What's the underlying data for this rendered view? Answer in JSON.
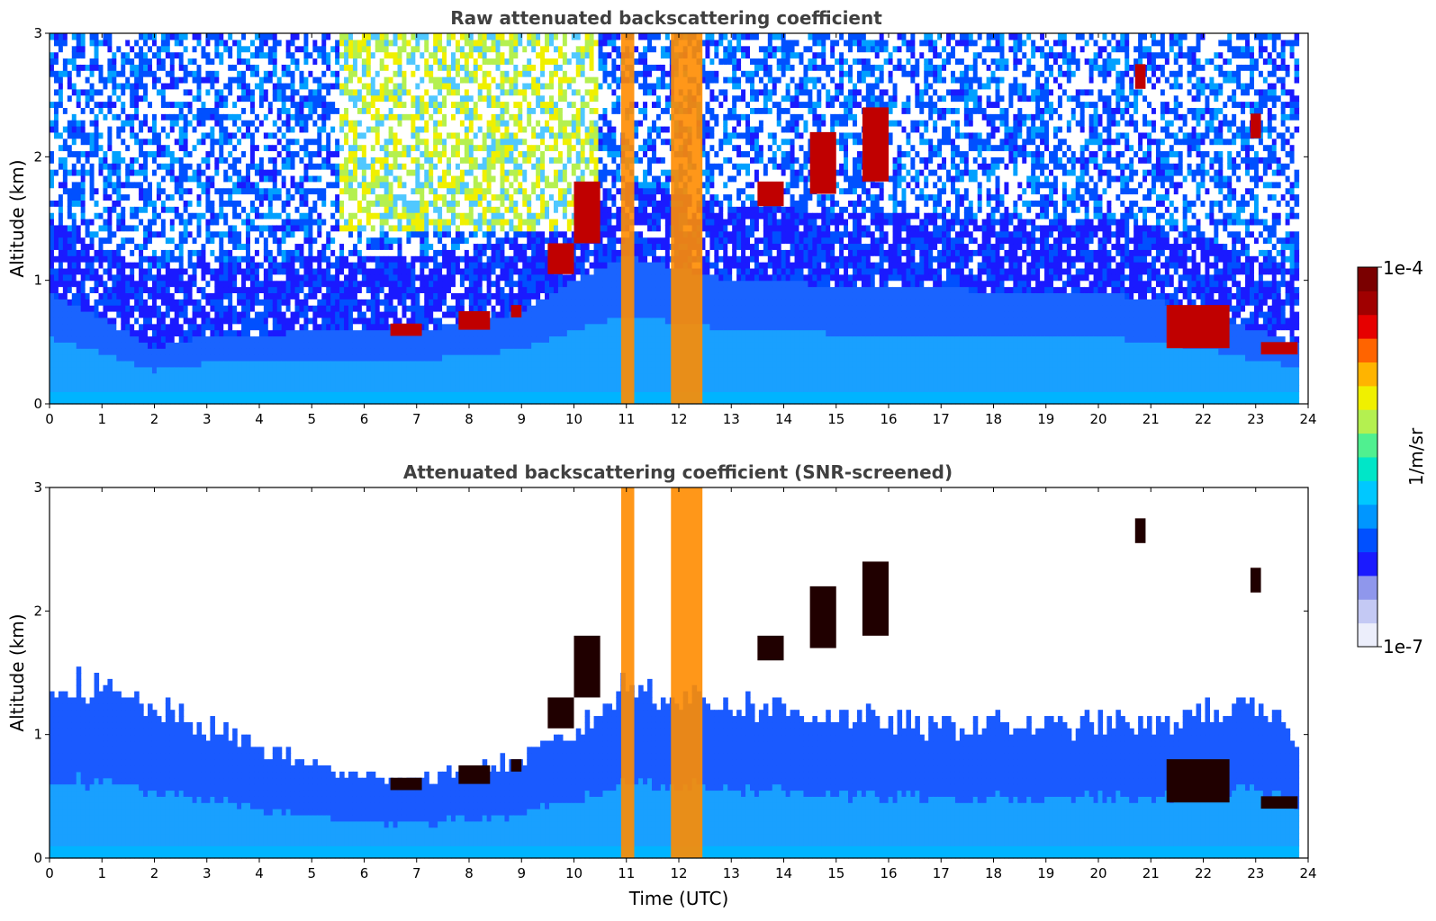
{
  "chart_data": [
    {
      "type": "heatmap",
      "title": "Raw attenuated backscattering coefficient",
      "xlabel": "",
      "ylabel": "Altitude (km)",
      "xlim": [
        0,
        24
      ],
      "ylim": [
        0,
        3
      ],
      "x_ticks": [
        "0",
        "1",
        "2",
        "3",
        "4",
        "5",
        "6",
        "7",
        "8",
        "9",
        "10",
        "11",
        "12",
        "13",
        "14",
        "15",
        "16",
        "17",
        "18",
        "19",
        "20",
        "21",
        "22",
        "23",
        "24"
      ],
      "y_ticks": [
        "0",
        "1",
        "2",
        "3"
      ],
      "boundary_layer_top_km": [
        [
          0,
          0.9
        ],
        [
          1,
          0.7
        ],
        [
          2,
          0.45
        ],
        [
          3,
          0.55
        ],
        [
          4,
          0.55
        ],
        [
          5,
          0.6
        ],
        [
          6,
          0.6
        ],
        [
          7,
          0.6
        ],
        [
          8,
          0.65
        ],
        [
          9,
          0.75
        ],
        [
          10,
          1.0
        ],
        [
          11,
          1.2
        ],
        [
          12,
          1.1
        ],
        [
          13,
          1.0
        ],
        [
          14,
          1.0
        ],
        [
          15,
          0.95
        ],
        [
          16,
          0.95
        ],
        [
          17,
          0.95
        ],
        [
          18,
          0.9
        ],
        [
          19,
          0.9
        ],
        [
          20,
          0.9
        ],
        [
          21,
          0.85
        ],
        [
          22,
          0.75
        ],
        [
          23,
          0.6
        ],
        [
          23.8,
          0.5
        ]
      ],
      "clouds": [
        {
          "x": [
            6.5,
            7.1
          ],
          "y": [
            0.55,
            0.65
          ]
        },
        {
          "x": [
            7.8,
            8.4
          ],
          "y": [
            0.6,
            0.75
          ]
        },
        {
          "x": [
            8.8,
            9.0
          ],
          "y": [
            0.7,
            0.8
          ]
        },
        {
          "x": [
            9.5,
            10.0
          ],
          "y": [
            1.05,
            1.3
          ]
        },
        {
          "x": [
            10.0,
            10.5
          ],
          "y": [
            1.3,
            1.8
          ]
        },
        {
          "x": [
            13.5,
            14.0
          ],
          "y": [
            1.6,
            1.8
          ]
        },
        {
          "x": [
            14.5,
            15.0
          ],
          "y": [
            1.7,
            2.2
          ]
        },
        {
          "x": [
            15.5,
            16.0
          ],
          "y": [
            1.8,
            2.4
          ]
        },
        {
          "x": [
            20.7,
            20.9
          ],
          "y": [
            2.55,
            2.75
          ]
        },
        {
          "x": [
            21.3,
            22.5
          ],
          "y": [
            0.45,
            0.8
          ]
        },
        {
          "x": [
            22.9,
            23.1
          ],
          "y": [
            2.15,
            2.35
          ]
        },
        {
          "x": [
            23.1,
            23.8
          ],
          "y": [
            0.4,
            0.5
          ]
        }
      ],
      "precipitation_columns_utc": [
        {
          "x": [
            10.9,
            11.15
          ],
          "y": [
            0,
            3
          ]
        },
        {
          "x": [
            11.85,
            12.45
          ],
          "y": [
            0,
            3
          ]
        }
      ]
    },
    {
      "type": "heatmap",
      "title": "Attenuated backscattering coefficient (SNR-screened)",
      "xlabel": "Time (UTC)",
      "ylabel": "Altitude (km)",
      "xlim": [
        0,
        24
      ],
      "ylim": [
        0,
        3
      ],
      "x_ticks": [
        "0",
        "1",
        "2",
        "3",
        "4",
        "5",
        "6",
        "7",
        "8",
        "9",
        "10",
        "11",
        "12",
        "13",
        "14",
        "15",
        "16",
        "17",
        "18",
        "19",
        "20",
        "21",
        "22",
        "23",
        "24"
      ],
      "y_ticks": [
        "0",
        "1",
        "2",
        "3"
      ],
      "screened_top_km": [
        [
          0,
          1.45
        ],
        [
          1,
          1.35
        ],
        [
          2,
          1.2
        ],
        [
          3,
          1.05
        ],
        [
          4,
          0.9
        ],
        [
          5,
          0.75
        ],
        [
          6,
          0.65
        ],
        [
          7,
          0.65
        ],
        [
          8,
          0.7
        ],
        [
          9,
          0.8
        ],
        [
          10,
          1.0
        ],
        [
          11,
          1.4
        ],
        [
          12,
          1.3
        ],
        [
          13,
          1.25
        ],
        [
          14,
          1.2
        ],
        [
          15,
          1.15
        ],
        [
          16,
          1.1
        ],
        [
          17,
          1.05
        ],
        [
          18,
          1.1
        ],
        [
          19,
          1.05
        ],
        [
          20,
          1.1
        ],
        [
          21,
          1.05
        ],
        [
          22,
          1.2
        ],
        [
          23,
          1.2
        ],
        [
          23.8,
          1.0
        ]
      ]
    }
  ],
  "colorbar": {
    "label": "1/m/sr",
    "max_label": "1e-4",
    "min_label": "1e-7",
    "colors": [
      "#eceefb",
      "#c4c9f4",
      "#8f97ec",
      "#1a1aff",
      "#0050ff",
      "#0096ff",
      "#00c8ff",
      "#00e6c8",
      "#50f090",
      "#b4f050",
      "#f0f000",
      "#ffb400",
      "#ff6400",
      "#e60000",
      "#a00000",
      "#7a0000"
    ]
  }
}
